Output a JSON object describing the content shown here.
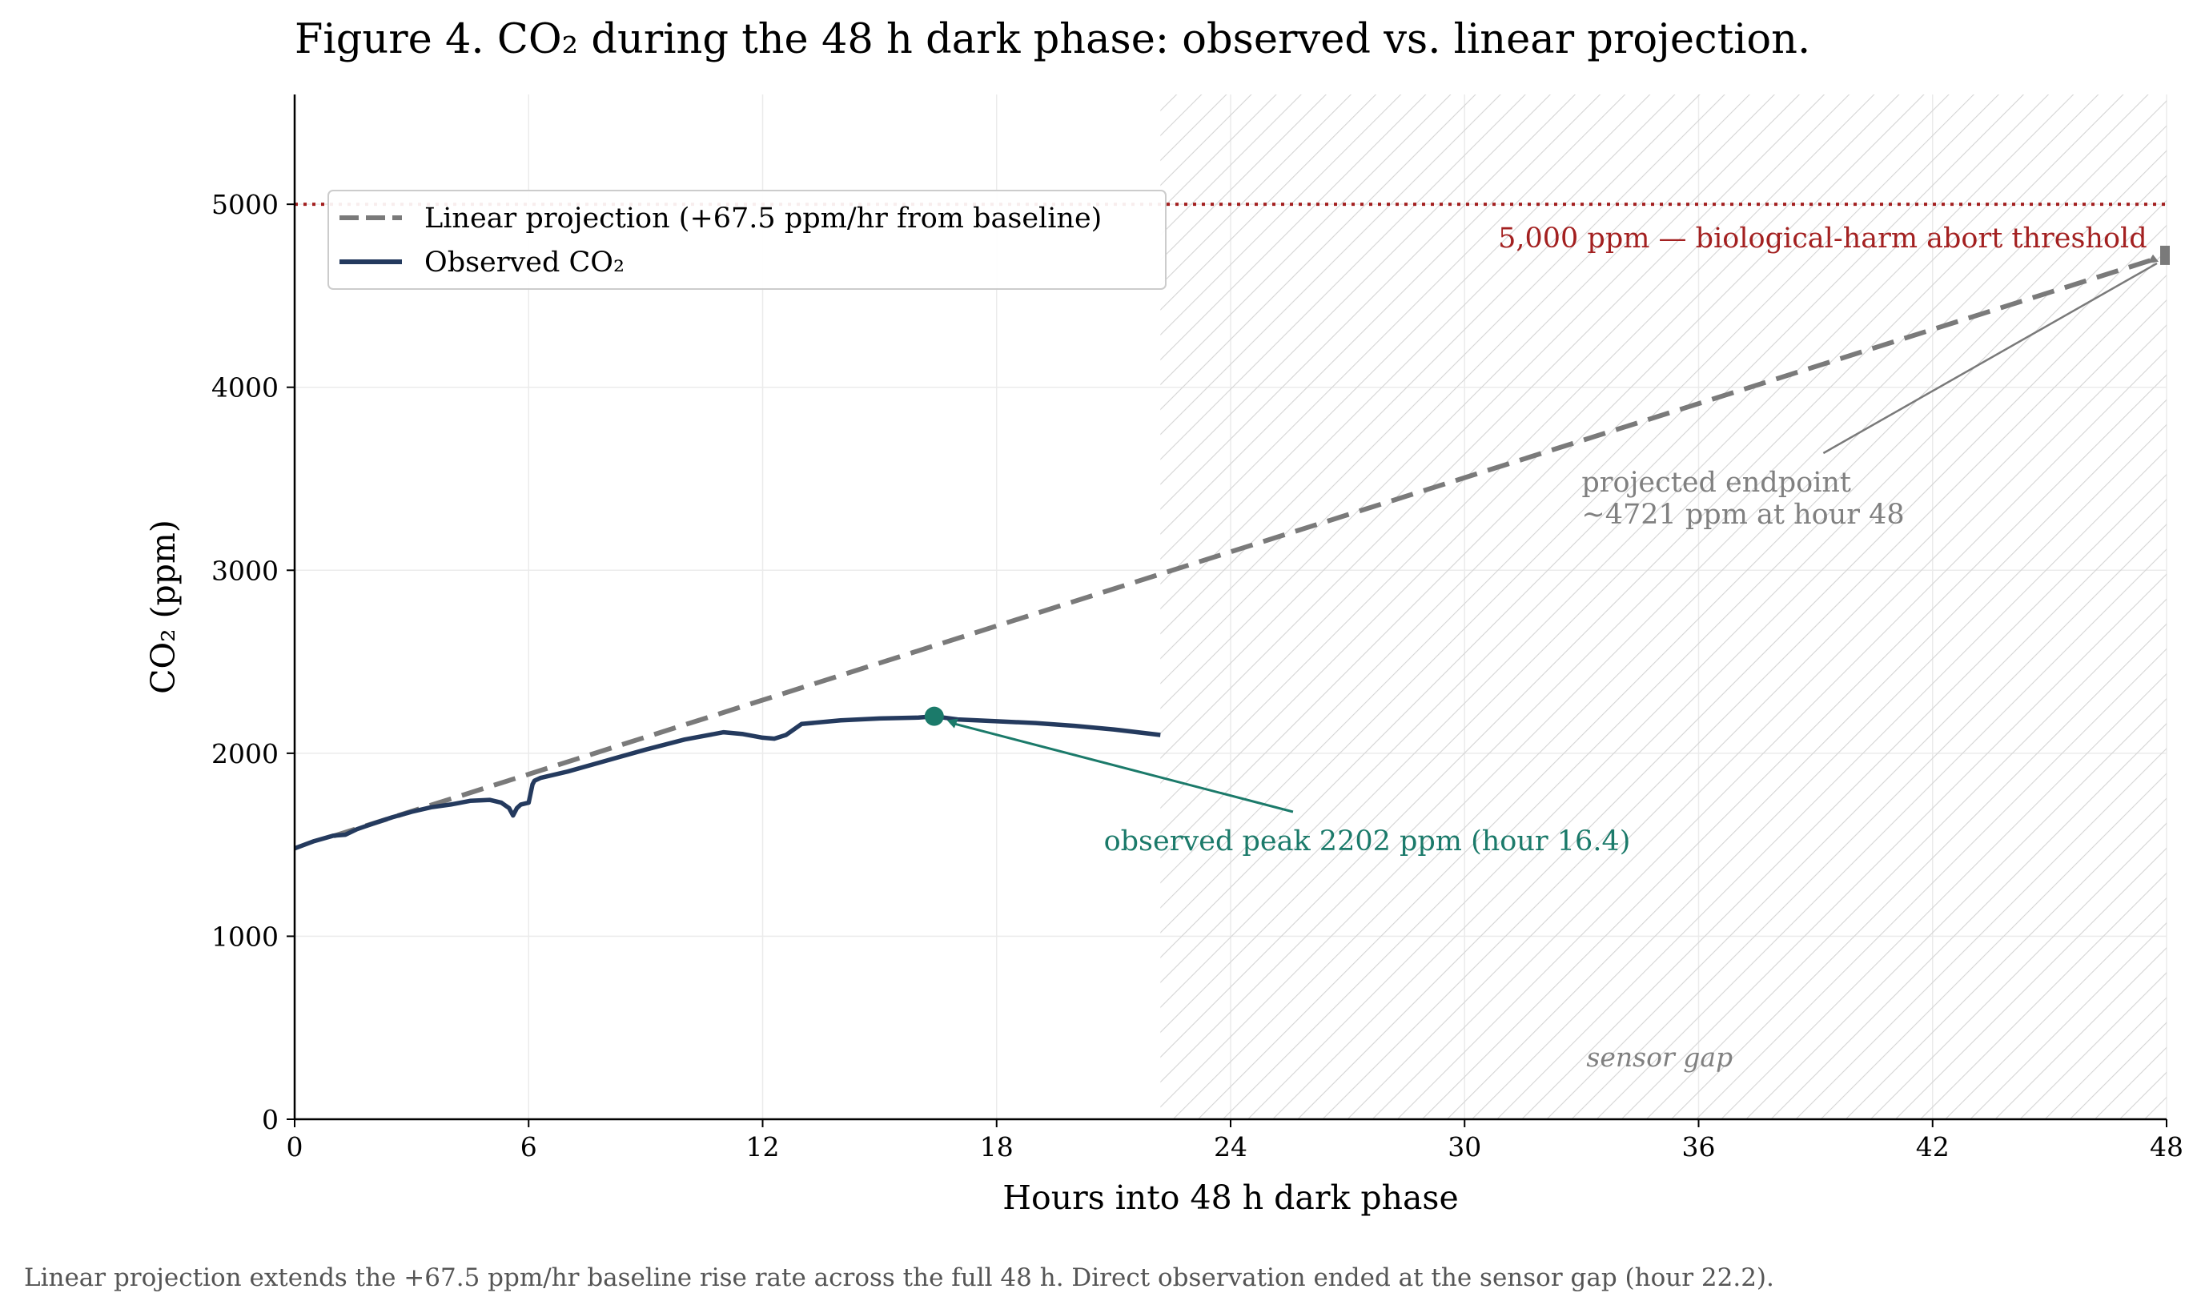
{
  "figure": {
    "title": "Figure 4.  CO₂ during the 48 h dark phase: observed vs. linear projection.",
    "caption": "Linear projection extends the +67.5 ppm/hr baseline rise rate across the full 48 h. Direct observation ended at the sensor gap (hour 22.2)."
  },
  "colors": {
    "observed": "#243a5e",
    "projection": "#7a7a7a",
    "threshold": "#a32020",
    "peak": "#1b7a6a",
    "annotation_gray": "#808080",
    "hatch": "#d4d4d4",
    "grid": "#ebebeb"
  },
  "chart_data": {
    "type": "line",
    "title": "Figure 4.  CO₂ during the 48 h dark phase: observed vs. linear projection.",
    "xlabel": "Hours into 48 h dark phase",
    "ylabel": "CO₂ (ppm)",
    "xlim": [
      0,
      48
    ],
    "ylim": [
      0,
      5600
    ],
    "xticks": [
      0,
      6,
      12,
      18,
      24,
      30,
      36,
      42,
      48
    ],
    "yticks": [
      0,
      1000,
      2000,
      3000,
      4000,
      5000
    ],
    "grid": true,
    "legend_position": "upper-left",
    "legend": [
      {
        "label": "Linear projection (+67.5 ppm/hr from baseline)",
        "style": "dashed"
      },
      {
        "label": "Observed CO₂",
        "style": "solid"
      }
    ],
    "series": [
      {
        "name": "Linear projection (+67.5 ppm/hr from baseline)",
        "x": [
          1.0,
          48.0
        ],
        "y": [
          1548,
          4721
        ]
      },
      {
        "name": "Observed CO₂",
        "x": [
          0,
          0.5,
          1.0,
          1.3,
          1.6,
          2.0,
          2.5,
          3.0,
          3.5,
          4.0,
          4.5,
          5.0,
          5.3,
          5.5,
          5.6,
          5.7,
          5.8,
          6.0,
          6.1,
          6.15,
          6.3,
          7.0,
          8.0,
          9.0,
          10.0,
          11.0,
          11.5,
          12.0,
          12.3,
          12.6,
          13.0,
          14.0,
          15.0,
          16.0,
          16.4,
          17.0,
          18.0,
          19.0,
          20.0,
          21.0,
          22.2
        ],
        "y": [
          1480,
          1520,
          1550,
          1555,
          1585,
          1615,
          1650,
          1680,
          1705,
          1720,
          1740,
          1745,
          1730,
          1700,
          1660,
          1700,
          1720,
          1730,
          1830,
          1850,
          1865,
          1900,
          1960,
          2020,
          2075,
          2115,
          2105,
          2085,
          2080,
          2100,
          2160,
          2180,
          2190,
          2195,
          2202,
          2185,
          2175,
          2165,
          2150,
          2130,
          2100
        ]
      }
    ],
    "threshold": {
      "value": 5000,
      "label": "5,000 ppm — biological-harm abort threshold"
    },
    "sensor_gap": {
      "start": 22.2,
      "end": 48,
      "label": "sensor gap"
    },
    "peak": {
      "x": 16.4,
      "y": 2202,
      "label": "observed peak  2202 ppm  (hour 16.4)"
    },
    "projected_endpoint": {
      "x": 48,
      "y": 4721,
      "label_line1": "projected endpoint",
      "label_line2": "~4721 ppm at hour 48"
    }
  }
}
